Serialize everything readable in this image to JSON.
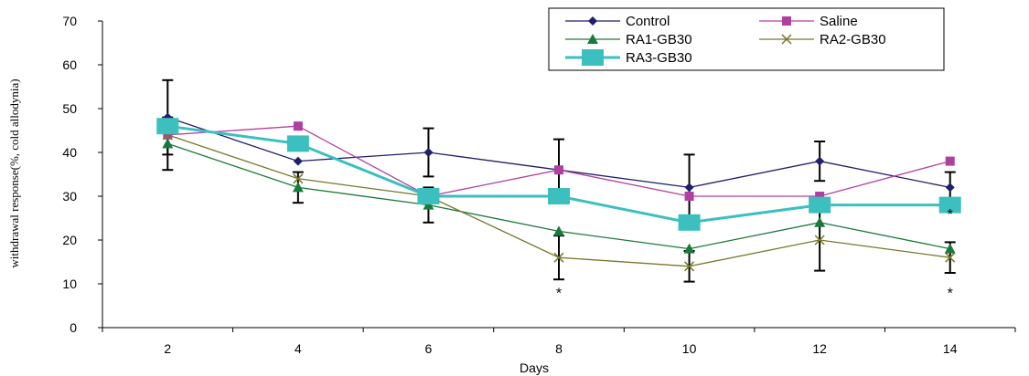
{
  "chart_data": {
    "type": "line",
    "xlabel": "Days",
    "ylabel": "withdrawal response(%, cold allodynia)",
    "x": [
      2,
      4,
      6,
      8,
      10,
      12,
      14
    ],
    "ylim": [
      0,
      70
    ],
    "yticks": [
      0,
      10,
      20,
      30,
      40,
      50,
      60,
      70
    ],
    "grid": false,
    "legend_position": "top-right",
    "series": [
      {
        "name": "Control",
        "color": "#1F1F6E",
        "marker": "diamond",
        "values": [
          48,
          38,
          40,
          36,
          32,
          38,
          32
        ],
        "errors": [
          8.5,
          null,
          5.5,
          7,
          7.5,
          4.5,
          3.5
        ]
      },
      {
        "name": "Saline",
        "color": "#B040A0",
        "marker": "square",
        "values": [
          44,
          46,
          30,
          36,
          30,
          30,
          38
        ],
        "errors": [
          null,
          null,
          null,
          null,
          null,
          null,
          null
        ]
      },
      {
        "name": "RA1-GB30",
        "color": "#1A7A3A",
        "marker": "triangle",
        "values": [
          42,
          32,
          28,
          22,
          18,
          24,
          18
        ],
        "errors": [
          6,
          3.5,
          4,
          null,
          null,
          null,
          null
        ]
      },
      {
        "name": "RA2-GB30",
        "color": "#77772A",
        "marker": "x",
        "values": [
          44,
          34,
          30,
          16,
          14,
          20,
          16
        ],
        "errors": [
          null,
          null,
          null,
          5,
          3.5,
          7,
          3.5
        ]
      },
      {
        "name": "RA3-GB30",
        "color": "#3BBFBF",
        "marker": "bigsquare",
        "values": [
          46,
          42,
          30,
          30,
          24,
          28,
          28
        ],
        "errors": [
          null,
          null,
          null,
          null,
          null,
          null,
          null
        ]
      }
    ],
    "annotations": [
      {
        "text": "*",
        "x": 8,
        "y": 8
      },
      {
        "text": "*",
        "x": 14,
        "y": 8
      },
      {
        "text": "*",
        "x": 14,
        "y": 26
      }
    ]
  }
}
